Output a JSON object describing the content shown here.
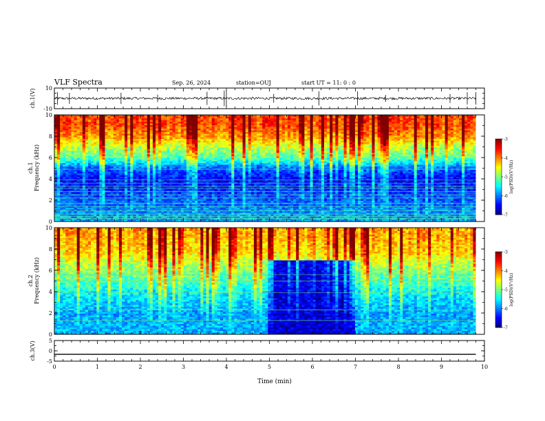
{
  "header": {
    "title": "VLF Spectra",
    "date": "Sep. 26, 2024",
    "station": "station=OUJ",
    "start_ut": "start UT =  11: 0  : 0"
  },
  "chart_data": [
    {
      "type": "line",
      "panel": "ch1-waveform",
      "ylabel": "ch.1(V)",
      "ylim": [
        -10,
        10
      ],
      "yticks": [
        {
          "value": 10,
          "label": "10"
        },
        {
          "value": -10,
          "label": "-10"
        }
      ],
      "xlim": [
        0,
        10
      ],
      "series": [
        {
          "x_range": [
            0,
            9.8
          ],
          "baseline": 0,
          "noise_amplitude": 1.2,
          "spike_minutes": [
            0.07,
            0.35,
            1.55,
            2.4,
            3.55,
            3.95,
            4.0,
            5.1,
            6.15,
            7.05,
            7.7,
            9.2,
            9.6,
            9.8
          ],
          "color": "#000000"
        }
      ]
    },
    {
      "type": "heatmap",
      "panel": "ch1-spectrogram",
      "ylabel": "ch.1 Frequency (kHz)",
      "ylim": [
        0,
        10
      ],
      "yticks": [
        0,
        2,
        4,
        6,
        8,
        10
      ],
      "xlim": [
        0,
        10
      ],
      "data_x_range": [
        0,
        9.8
      ],
      "colorbar": {
        "label": "log(PSD)(V²/Hz)",
        "range": [
          -7,
          -3
        ],
        "ticks": [
          -3,
          -4,
          -5,
          -6,
          -7
        ]
      },
      "levels_by_frequency_khz": [
        {
          "f": 0.0,
          "level": -5.8
        },
        {
          "f": 1.0,
          "level": -6.0
        },
        {
          "f": 2.0,
          "level": -6.2
        },
        {
          "f": 3.0,
          "level": -6.4
        },
        {
          "f": 4.0,
          "level": -6.6
        },
        {
          "f": 5.0,
          "level": -6.2
        },
        {
          "f": 6.0,
          "level": -5.3
        },
        {
          "f": 7.0,
          "level": -4.9
        },
        {
          "f": 8.0,
          "level": -4.3
        },
        {
          "f": 9.0,
          "level": -4.0
        },
        {
          "f": 10.0,
          "level": -4.0
        }
      ],
      "lines_khz": [
        0.3,
        0.5,
        0.7,
        1.0,
        1.4,
        1.7,
        2.2,
        2.5,
        2.8,
        3.1,
        3.3,
        3.6,
        3.9,
        4.9
      ],
      "notes": "vertical sferic bursts across full record"
    },
    {
      "type": "heatmap",
      "panel": "ch2-spectrogram",
      "ylabel": "ch.2 Frequency (kHz)",
      "ylim": [
        0,
        10
      ],
      "yticks": [
        0,
        2,
        4,
        6,
        8,
        10
      ],
      "xlim": [
        0,
        10
      ],
      "data_x_range": [
        0,
        9.8
      ],
      "colorbar": {
        "label": "log(PSD)(V²/Hz)",
        "range": [
          -7,
          -3
        ],
        "ticks": [
          -3,
          -4,
          -5,
          -6,
          -7
        ]
      },
      "levels_by_frequency_khz": [
        {
          "f": 0.0,
          "level": -5.8
        },
        {
          "f": 2.0,
          "level": -5.9
        },
        {
          "f": 4.0,
          "level": -5.6
        },
        {
          "f": 5.5,
          "level": -5.2
        },
        {
          "f": 6.5,
          "level": -5.0
        },
        {
          "f": 7.5,
          "level": -4.6
        },
        {
          "f": 9.0,
          "level": -4.4
        },
        {
          "f": 10.0,
          "level": -4.4
        }
      ],
      "quiet_interval_min": {
        "from": 4.95,
        "to": 7.0,
        "below_khz": 7.0,
        "level": -6.7
      },
      "lines_khz": [
        1.3,
        2.3,
        3.9,
        5.0,
        5.6
      ]
    },
    {
      "type": "line",
      "panel": "ch3-waveform",
      "ylabel": "ch.3(V)",
      "xlabel": "Time (min)",
      "ylim": [
        -5,
        5
      ],
      "yticks": [
        {
          "value": 5,
          "label": "5"
        },
        {
          "value": 0,
          "label": "0"
        },
        {
          "value": -5,
          "label": "-5"
        }
      ],
      "xlim": [
        0,
        10
      ],
      "xticks": [
        0,
        1,
        2,
        3,
        4,
        5,
        6,
        7,
        8,
        9,
        10
      ],
      "series": [
        {
          "x": [
            0,
            9.8
          ],
          "y": [
            -1.7,
            -1.7
          ],
          "color": "#000000"
        }
      ]
    }
  ]
}
